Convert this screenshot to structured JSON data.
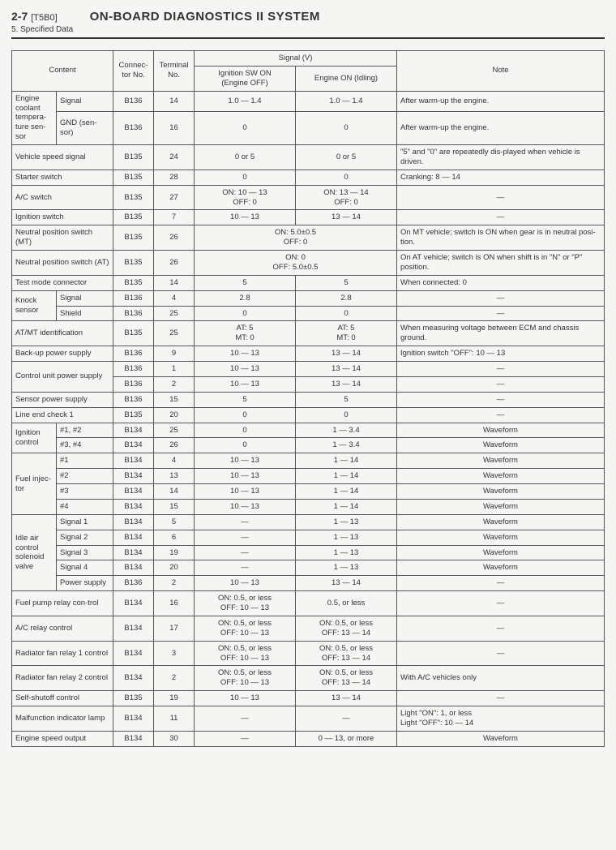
{
  "header": {
    "page_code": "2-7",
    "model": "[T5B0]",
    "title": "ON-BOARD DIAGNOSTICS II SYSTEM",
    "subtitle": "5. Specified Data"
  },
  "thead": {
    "content": "Content",
    "connector": "Connec-\ntor No.",
    "terminal": "Terminal\nNo.",
    "signal": "Signal (V)",
    "ign_on": "Ignition SW ON\n(Engine OFF)",
    "eng_on": "Engine ON (Idling)",
    "note": "Note"
  },
  "rows": [
    {
      "c0": "Engine coolant tempera-ture sen-sor",
      "c0_rs": 2,
      "c1": "Signal",
      "conn": "B136",
      "term": "14",
      "ion": "1.0 — 1.4",
      "eon": "1.0 — 1.4",
      "note": "After warm-up the engine.",
      "note_align": "l"
    },
    {
      "c1": "GND (sen-sor)",
      "conn": "B136",
      "term": "16",
      "ion": "0",
      "eon": "0",
      "note": "After warm-up the engine.",
      "note_align": "l"
    },
    {
      "c0": "Vehicle speed signal",
      "c0_cs": 2,
      "conn": "B135",
      "term": "24",
      "ion": "0 or 5",
      "eon": "0 or 5",
      "note": "\"5\" and \"0\" are repeatedly dis-played when vehicle is driven.",
      "note_align": "l"
    },
    {
      "c0": "Starter switch",
      "c0_cs": 2,
      "conn": "B135",
      "term": "28",
      "ion": "0",
      "eon": "0",
      "note": "Cranking: 8 — 14",
      "note_align": "l"
    },
    {
      "c0": "A/C switch",
      "c0_cs": 2,
      "conn": "B135",
      "term": "27",
      "ion": "ON: 10 — 13\nOFF: 0",
      "eon": "ON: 13 — 14\nOFF: 0",
      "note": "—"
    },
    {
      "c0": "Ignition switch",
      "c0_cs": 2,
      "conn": "B135",
      "term": "7",
      "ion": "10 — 13",
      "eon": "13 — 14",
      "note": "—"
    },
    {
      "c0": "Neutral position switch (MT)",
      "c0_cs": 2,
      "conn": "B135",
      "term": "26",
      "ion_cs": 2,
      "ion": "ON: 5.0±0.5\nOFF: 0",
      "note": "On MT vehicle; switch is ON when gear is in neutral posi-tion.",
      "note_align": "l"
    },
    {
      "c0": "Neutral position switch (AT)",
      "c0_cs": 2,
      "conn": "B135",
      "term": "26",
      "ion_cs": 2,
      "ion": "ON: 0\nOFF: 5.0±0.5",
      "note": "On AT vehicle; switch is ON when shift is in \"N\" or \"P\" position.",
      "note_align": "l"
    },
    {
      "c0": "Test mode connector",
      "c0_cs": 2,
      "conn": "B135",
      "term": "14",
      "ion": "5",
      "eon": "5",
      "note": "When connected: 0",
      "note_align": "l"
    },
    {
      "c0": "Knock sensor",
      "c0_rs": 2,
      "c1": "Signal",
      "conn": "B136",
      "term": "4",
      "ion": "2.8",
      "eon": "2.8",
      "note": "—"
    },
    {
      "c1": "Shield",
      "conn": "B136",
      "term": "25",
      "ion": "0",
      "eon": "0",
      "note": "—"
    },
    {
      "c0": "AT/MT identification",
      "c0_cs": 2,
      "conn": "B135",
      "term": "25",
      "ion": "AT: 5\nMT: 0",
      "eon": "AT: 5\nMT: 0",
      "note": "When measuring voltage between ECM and chassis ground.",
      "note_align": "l"
    },
    {
      "c0": "Back-up power supply",
      "c0_cs": 2,
      "conn": "B136",
      "term": "9",
      "ion": "10 — 13",
      "eon": "13 — 14",
      "note": "Ignition switch \"OFF\": 10 — 13",
      "note_align": "l"
    },
    {
      "c0": "Control unit power supply",
      "c0_cs": 2,
      "c0_rs": 2,
      "conn": "B136",
      "term": "1",
      "ion": "10 — 13",
      "eon": "13 — 14",
      "note": "—"
    },
    {
      "conn": "B136",
      "term": "2",
      "ion": "10 — 13",
      "eon": "13 — 14",
      "note": "—"
    },
    {
      "c0": "Sensor power supply",
      "c0_cs": 2,
      "conn": "B136",
      "term": "15",
      "ion": "5",
      "eon": "5",
      "note": "—"
    },
    {
      "c0": "Line end check 1",
      "c0_cs": 2,
      "conn": "B135",
      "term": "20",
      "ion": "0",
      "eon": "0",
      "note": "—"
    },
    {
      "c0": "Ignition control",
      "c0_rs": 2,
      "c1": "#1, #2",
      "conn": "B134",
      "term": "25",
      "ion": "0",
      "eon": "1 — 3.4",
      "note": "Waveform"
    },
    {
      "c1": "#3, #4",
      "conn": "B134",
      "term": "26",
      "ion": "0",
      "eon": "1 — 3.4",
      "note": "Waveform"
    },
    {
      "c0": "Fuel injec-tor",
      "c0_rs": 4,
      "c1": "#1",
      "conn": "B134",
      "term": "4",
      "ion": "10 — 13",
      "eon": "1 — 14",
      "note": "Waveform"
    },
    {
      "c1": "#2",
      "conn": "B134",
      "term": "13",
      "ion": "10 — 13",
      "eon": "1 — 14",
      "note": "Waveform"
    },
    {
      "c1": "#3",
      "conn": "B134",
      "term": "14",
      "ion": "10 — 13",
      "eon": "1 — 14",
      "note": "Waveform"
    },
    {
      "c1": "#4",
      "conn": "B134",
      "term": "15",
      "ion": "10 — 13",
      "eon": "1 — 14",
      "note": "Waveform"
    },
    {
      "c0": "Idle air control solenoid valve",
      "c0_rs": 5,
      "c1": "Signal 1",
      "conn": "B134",
      "term": "5",
      "ion": "—",
      "eon": "1 — 13",
      "note": "Waveform"
    },
    {
      "c1": "Signal 2",
      "conn": "B134",
      "term": "6",
      "ion": "—",
      "eon": "1 — 13",
      "note": "Waveform"
    },
    {
      "c1": "Signal 3",
      "conn": "B134",
      "term": "19",
      "ion": "—",
      "eon": "1 — 13",
      "note": "Waveform"
    },
    {
      "c1": "Signal 4",
      "conn": "B134",
      "term": "20",
      "ion": "—",
      "eon": "1 — 13",
      "note": "Waveform"
    },
    {
      "c1": "Power supply",
      "conn": "B136",
      "term": "2",
      "ion": "10 — 13",
      "eon": "13 — 14",
      "note": "—"
    },
    {
      "c0": "Fuel pump relay con-trol",
      "c0_cs": 2,
      "conn": "B134",
      "term": "16",
      "ion": "ON: 0.5, or less\nOFF: 10 — 13",
      "eon": "0.5, or less",
      "note": "—"
    },
    {
      "c0": "A/C relay control",
      "c0_cs": 2,
      "conn": "B134",
      "term": "17",
      "ion": "ON: 0.5, or less\nOFF: 10 — 13",
      "eon": "ON: 0.5, or less\nOFF: 13 — 14",
      "note": "—"
    },
    {
      "c0": "Radiator fan relay 1 control",
      "c0_cs": 2,
      "conn": "B134",
      "term": "3",
      "ion": "ON: 0.5, or less\nOFF: 10 — 13",
      "eon": "ON: 0.5, or less\nOFF: 13 — 14",
      "note": "—"
    },
    {
      "c0": "Radiator fan relay 2 control",
      "c0_cs": 2,
      "conn": "B134",
      "term": "2",
      "ion": "ON: 0.5, or less\nOFF: 10 — 13",
      "eon": "ON: 0.5, or less\nOFF: 13 — 14",
      "note": "With A/C vehicles only",
      "note_align": "l"
    },
    {
      "c0": "Self-shutoff control",
      "c0_cs": 2,
      "conn": "B135",
      "term": "19",
      "ion": "10 — 13",
      "eon": "13 — 14",
      "note": "—"
    },
    {
      "c0": "Malfunction indicator lamp",
      "c0_cs": 2,
      "conn": "B134",
      "term": "11",
      "ion": "—",
      "eon": "—",
      "note": "Light \"ON\": 1, or less\nLight \"OFF\": 10 — 14",
      "note_align": "l"
    },
    {
      "c0": "Engine speed output",
      "c0_cs": 2,
      "conn": "B134",
      "term": "30",
      "ion": "—",
      "eon": "0 — 13, or more",
      "note": "Waveform"
    }
  ]
}
